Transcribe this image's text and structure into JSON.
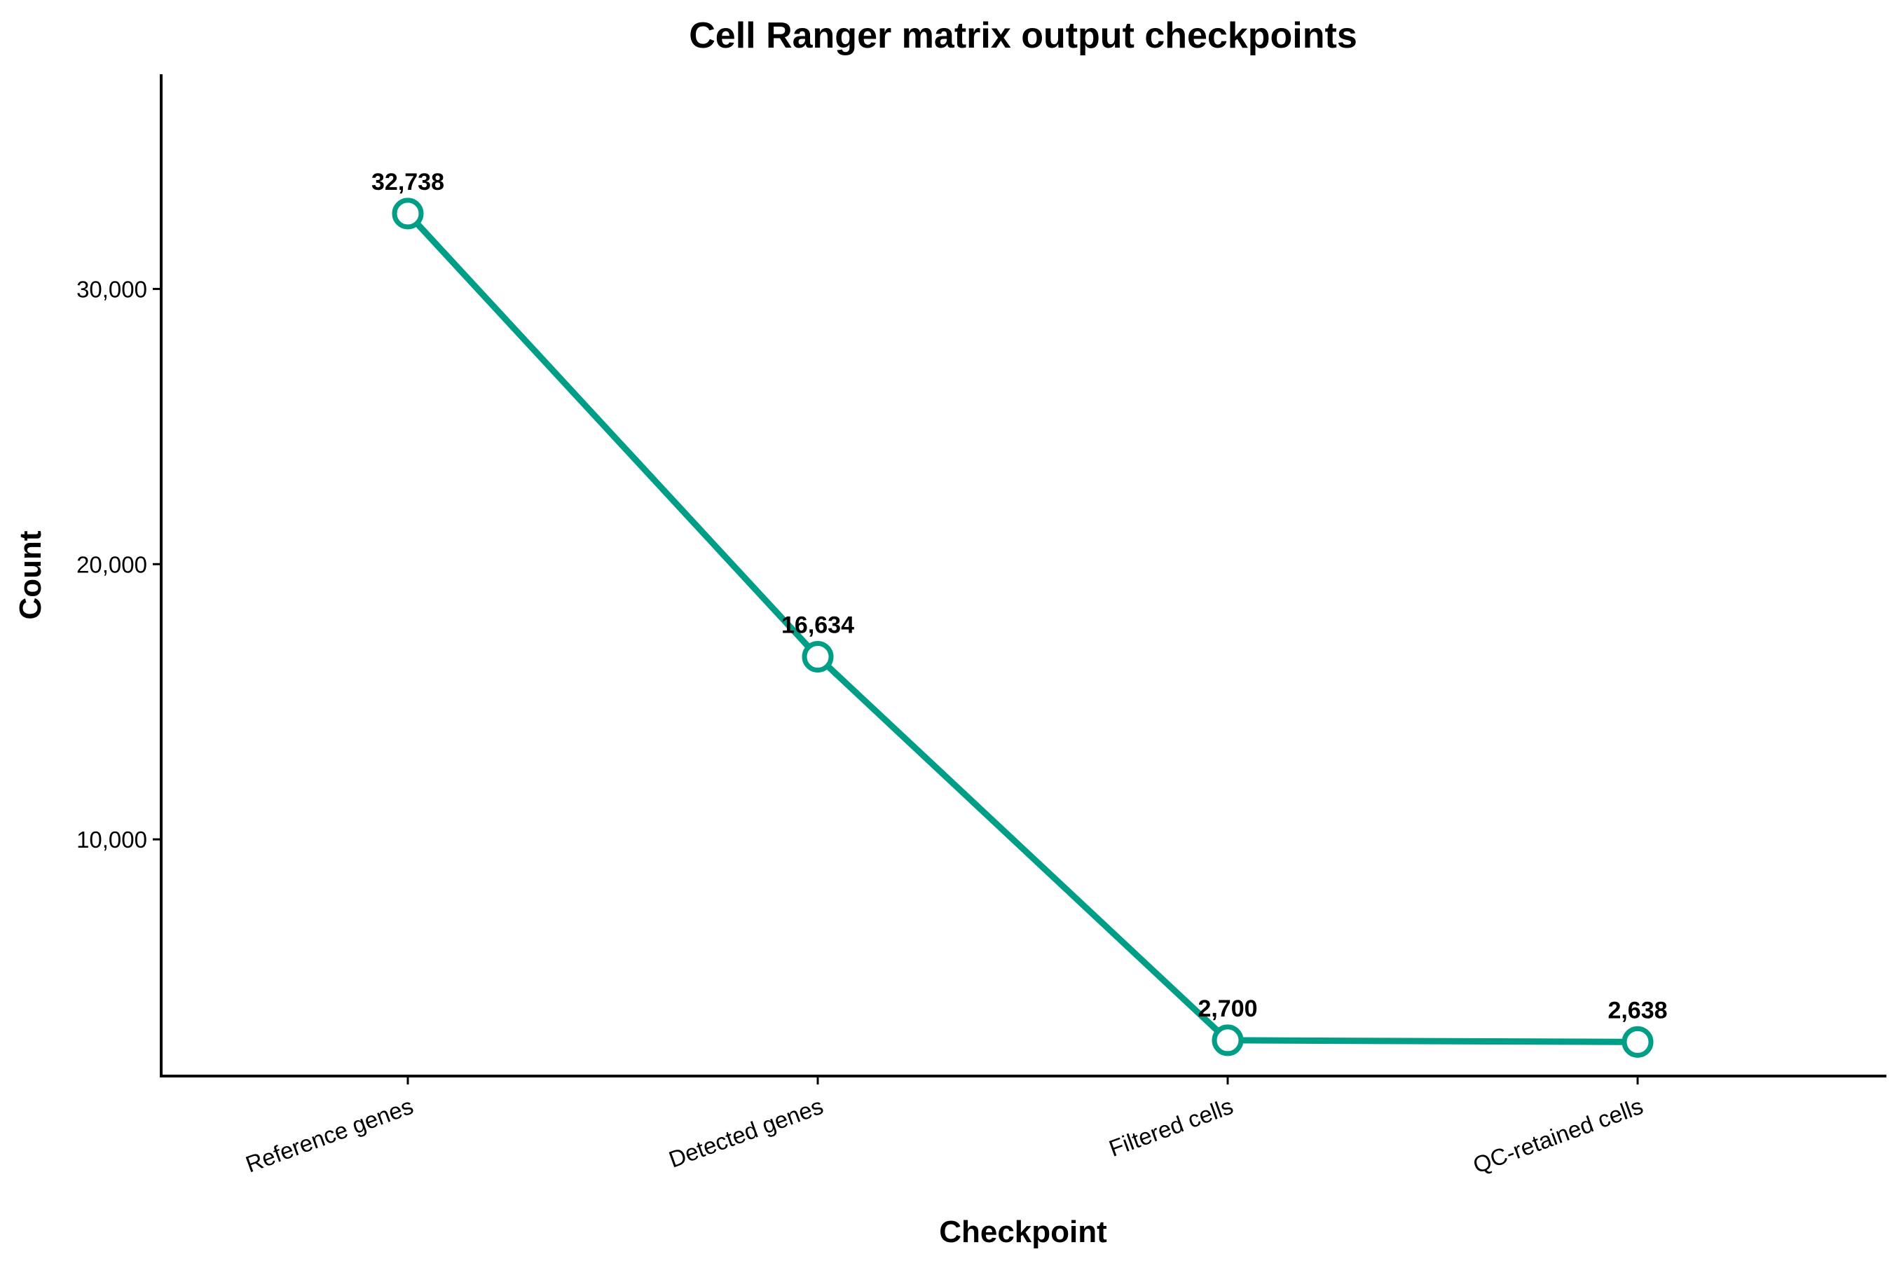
{
  "chart_data": {
    "type": "line",
    "title": "Cell Ranger matrix output checkpoints",
    "xlabel": "Checkpoint",
    "ylabel": "Count",
    "categories": [
      "Reference genes",
      "Detected genes",
      "Filtered cells",
      "QC-retained cells"
    ],
    "series": [
      {
        "values": [
          32738,
          16634,
          2700,
          2638
        ],
        "data_labels": [
          "32,738",
          "16,634",
          "2,700",
          "2,638"
        ]
      }
    ],
    "ylim": [
      1400,
      37800
    ],
    "yticks": [
      10000,
      20000,
      30000
    ],
    "ytick_labels": [
      "10,000",
      "20,000",
      "30,000"
    ],
    "grid": false,
    "legend": "none",
    "line_color": "#009E86",
    "marker_fill": "#ffffff"
  }
}
